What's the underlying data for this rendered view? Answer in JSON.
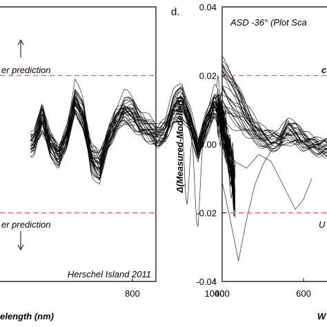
{
  "chart_data": [
    {
      "type": "line",
      "panel": "left",
      "xlim": [
        550,
        1050
      ],
      "ylim": [
        -0.04,
        0.04
      ],
      "x_ticks": [
        "800",
        "1000"
      ],
      "x_tick_values": [
        800,
        1000
      ],
      "xlabel_visible": "elength (nm)",
      "annotations": {
        "upper": "er prediction",
        "lower": "er prediction",
        "site": "Herschel Island 2011"
      },
      "reference_lines": [
        0.02,
        -0.02
      ],
      "reference_color": "#e05a72",
      "line_color": "#000000",
      "series_profile": {
        "x": [
          560,
          580,
          600,
          620,
          640,
          660,
          680,
          700,
          720,
          740,
          760,
          780,
          800,
          820,
          840,
          860,
          880,
          900,
          920,
          940,
          960,
          980,
          1000,
          1020,
          1040,
          1050
        ],
        "y": [
          0.0,
          0.008,
          0.0,
          -0.004,
          0.002,
          0.013,
          0.008,
          -0.004,
          -0.007,
          0.001,
          0.007,
          0.01,
          0.009,
          0.006,
          0.004,
          0.002,
          0.004,
          0.01,
          0.013,
          0.007,
          -0.002,
          0.006,
          0.012,
          0.006,
          -0.006,
          -0.015
        ]
      },
      "curve_count": 30
    },
    {
      "type": "line",
      "panel": "right",
      "panel_letter": "d.",
      "title": "ASD -36° (Plot Sca",
      "ylabel": "Δ(Measured-Modelled)",
      "xlabel_visible": "W",
      "xlim": [
        400,
        700
      ],
      "ylim": [
        -0.04,
        0.04
      ],
      "x_ticks": [
        "400",
        "600"
      ],
      "x_tick_values": [
        400,
        600
      ],
      "y_ticks": [
        "0.04",
        "0.02",
        "0.00",
        "-0.02",
        "-0.04"
      ],
      "y_tick_values": [
        0.04,
        0.02,
        0.0,
        -0.02,
        -0.04
      ],
      "annotations": {
        "upper": "c",
        "lower": "U"
      },
      "reference_lines": [
        0.02,
        -0.02
      ],
      "reference_color": "#e05a72",
      "line_color": "#000000",
      "series_profile": {
        "x": [
          400,
          420,
          440,
          460,
          480,
          500,
          520,
          540,
          560,
          580,
          600,
          620,
          640,
          660,
          680,
          700
        ],
        "y": [
          0.017,
          0.014,
          0.011,
          0.007,
          0.004,
          0.002,
          0.001,
          0.001,
          0.004,
          0.003,
          0.001,
          0.0,
          -0.001,
          -0.001,
          -0.001,
          -0.001
        ]
      },
      "outliers": [
        {
          "x": [
            400,
            420,
            440,
            460,
            480,
            500,
            520,
            540,
            560,
            580,
            600,
            620
          ],
          "y": [
            -0.011,
            -0.022,
            -0.034,
            -0.022,
            -0.012,
            -0.006,
            -0.002,
            0.0,
            0.0,
            0.001,
            0.0,
            -0.001
          ]
        },
        {
          "x": [
            400,
            430,
            460,
            490,
            520,
            550,
            580,
            600,
            620
          ],
          "y": [
            0.0,
            -0.005,
            -0.007,
            -0.003,
            -0.005,
            -0.012,
            -0.019,
            -0.016,
            -0.01
          ]
        }
      ],
      "curve_count": 25
    }
  ]
}
